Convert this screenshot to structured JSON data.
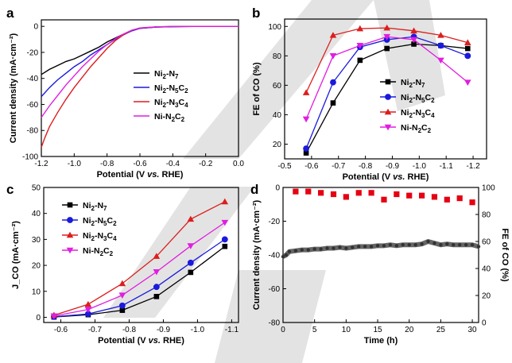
{
  "colors": {
    "ni2n7": "#000000",
    "ni2n5c2": "#1a1adc",
    "ni2n3c4": "#dc1e1e",
    "nin2c2": "#e01ee0",
    "fe_red": "#e60012",
    "current_gray": "#555555"
  },
  "chart_data": [
    {
      "panel": "a",
      "type": "line",
      "xlabel": "Potential (V vs. RHE)",
      "ylabel": "Current density (mA·cm⁻²)",
      "xlim": [
        -1.2,
        0.0
      ],
      "ylim": [
        -100,
        5
      ],
      "xticks": [
        "-1.2",
        "-1.0",
        "-0.8",
        "-0.6",
        "-0.4",
        "-0.2",
        "0.0"
      ],
      "yticks": [
        "-100",
        "-80",
        "-60",
        "-40",
        "-20",
        "0"
      ],
      "legend": [
        "Ni₂-N₇",
        "Ni₂-N₅C₂",
        "Ni₂-N₃C₄",
        "Ni-N₂C₂"
      ],
      "series": [
        {
          "name": "Ni₂-N₇",
          "color": "#000000",
          "x": [
            -1.2,
            -1.15,
            -1.1,
            -1.05,
            -1.0,
            -0.95,
            -0.9,
            -0.85,
            -0.8,
            -0.75,
            -0.7,
            -0.65,
            -0.6,
            -0.5,
            -0.4,
            -0.2,
            0.0
          ],
          "y": [
            -37,
            -33,
            -30,
            -27,
            -25,
            -22,
            -19,
            -16,
            -12,
            -9,
            -6,
            -3,
            -1.5,
            -0.5,
            -0.2,
            0,
            0
          ]
        },
        {
          "name": "Ni₂-N₅C₂",
          "color": "#1a1adc",
          "x": [
            -1.2,
            -1.15,
            -1.1,
            -1.05,
            -1.0,
            -0.95,
            -0.9,
            -0.85,
            -0.8,
            -0.75,
            -0.7,
            -0.65,
            -0.6,
            -0.5,
            -0.4,
            -0.2,
            0.0
          ],
          "y": [
            -54,
            -47,
            -41,
            -36,
            -31,
            -27,
            -22,
            -18,
            -14,
            -10,
            -6.5,
            -3.5,
            -1.5,
            -0.5,
            -0.2,
            0,
            0
          ]
        },
        {
          "name": "Ni₂-N₃C₄",
          "color": "#dc1e1e",
          "x": [
            -1.2,
            -1.18,
            -1.15,
            -1.1,
            -1.05,
            -1.0,
            -0.95,
            -0.9,
            -0.85,
            -0.8,
            -0.75,
            -0.7,
            -0.65,
            -0.6,
            -0.5,
            -0.4,
            -0.2,
            0.0
          ],
          "y": [
            -93,
            -86,
            -77,
            -66,
            -56,
            -47,
            -39,
            -31,
            -24,
            -17,
            -11,
            -6.5,
            -3,
            -1.2,
            -0.4,
            -0.1,
            0,
            0
          ]
        },
        {
          "name": "Ni-N₂C₂",
          "color": "#e01ee0",
          "x": [
            -1.2,
            -1.15,
            -1.1,
            -1.05,
            -1.0,
            -0.95,
            -0.9,
            -0.85,
            -0.8,
            -0.75,
            -0.7,
            -0.65,
            -0.6,
            -0.5,
            -0.4,
            -0.2,
            0.0
          ],
          "y": [
            -70,
            -61,
            -53,
            -45,
            -38,
            -31,
            -25,
            -19,
            -14,
            -9.5,
            -6,
            -3,
            -1.3,
            -0.4,
            -0.1,
            0,
            0
          ]
        }
      ]
    },
    {
      "panel": "b",
      "type": "line",
      "xlabel": "Potential (V vs. RHE)",
      "ylabel": "FE of CO (%)",
      "xlim": [
        -0.5,
        -1.25
      ],
      "ylim": [
        10,
        105
      ],
      "xticks": [
        "-0.5",
        "-0.6",
        "-0.7",
        "-0.8",
        "-0.9",
        "-1.0",
        "-1.1",
        "-1.2"
      ],
      "yticks": [
        "20",
        "40",
        "60",
        "80",
        "100"
      ],
      "legend": [
        "Ni₂-N₇",
        "Ni₂-N₅C₂",
        "Ni₂-N₃C₄",
        "Ni-N₂C₂"
      ],
      "series": [
        {
          "name": "Ni₂-N₇",
          "color": "#000000",
          "marker": "square",
          "x": [
            -0.58,
            -0.68,
            -0.78,
            -0.88,
            -0.98,
            -1.08,
            -1.18
          ],
          "y": [
            14,
            48,
            77,
            85,
            88,
            87,
            85
          ]
        },
        {
          "name": "Ni₂-N₅C₂",
          "color": "#1a1adc",
          "marker": "circle",
          "x": [
            -0.58,
            -0.68,
            -0.78,
            -0.88,
            -0.98,
            -1.08,
            -1.18
          ],
          "y": [
            17,
            62,
            86,
            91,
            93,
            87,
            80
          ]
        },
        {
          "name": "Ni₂-N₃C₄",
          "color": "#dc1e1e",
          "marker": "triangle-up",
          "x": [
            -0.58,
            -0.68,
            -0.78,
            -0.88,
            -0.98,
            -1.08,
            -1.18
          ],
          "y": [
            55,
            94,
            98.5,
            99,
            97,
            94,
            89
          ]
        },
        {
          "name": "Ni-N₂C₂",
          "color": "#e01ee0",
          "marker": "triangle-down",
          "x": [
            -0.58,
            -0.68,
            -0.78,
            -0.88,
            -0.98,
            -1.08,
            -1.18
          ],
          "y": [
            37,
            80,
            87,
            93,
            91,
            77,
            62
          ]
        }
      ]
    },
    {
      "panel": "c",
      "type": "line",
      "xlabel": "Potential (V vs. RHE)",
      "ylabel": "J_CO (mA·cm⁻²)",
      "xlim": [
        -0.55,
        -1.12
      ],
      "ylim": [
        -2,
        50
      ],
      "xticks": [
        "-0.6",
        "-0.7",
        "-0.8",
        "-0.9",
        "-1.0",
        "-1.1"
      ],
      "yticks": [
        "0",
        "10",
        "20",
        "30",
        "40",
        "50"
      ],
      "legend": [
        "Ni₂-N₇",
        "Ni₂-N₅C₂",
        "Ni₂-N₃C₄",
        "Ni-N₂C₂"
      ],
      "series": [
        {
          "name": "Ni₂-N₇",
          "color": "#000000",
          "marker": "square",
          "x": [
            -0.58,
            -0.68,
            -0.78,
            -0.88,
            -0.98,
            -1.08
          ],
          "y": [
            0.1,
            1.0,
            2.7,
            8.0,
            17.3,
            27.3
          ]
        },
        {
          "name": "Ni₂-N₅C₂",
          "color": "#1a1adc",
          "marker": "circle",
          "x": [
            -0.58,
            -0.68,
            -0.78,
            -0.88,
            -0.98,
            -1.08
          ],
          "y": [
            0.2,
            1.3,
            4.5,
            11.7,
            21.0,
            30.0
          ]
        },
        {
          "name": "Ni₂-N₃C₄",
          "color": "#dc1e1e",
          "marker": "triangle-up",
          "x": [
            -0.58,
            -0.68,
            -0.78,
            -0.88,
            -0.98,
            -1.08
          ],
          "y": [
            0.8,
            5.0,
            13.0,
            23.5,
            37.8,
            44.5
          ]
        },
        {
          "name": "Ni-N₂C₂",
          "color": "#e01ee0",
          "marker": "triangle-down",
          "x": [
            -0.58,
            -0.68,
            -0.78,
            -0.88,
            -0.98,
            -1.08
          ],
          "y": [
            0.5,
            3.0,
            8.5,
            17.5,
            27.5,
            36.5
          ]
        }
      ]
    },
    {
      "panel": "d",
      "type": "scatter",
      "xlabel": "Time (h)",
      "ylabel": "Current density (mA·cm⁻²)",
      "y2label": "FE of CO (%)",
      "xlim": [
        0,
        31
      ],
      "ylim": [
        -80,
        0
      ],
      "y2lim": [
        0,
        100
      ],
      "xticks": [
        "0",
        "5",
        "10",
        "15",
        "20",
        "25",
        "30"
      ],
      "yticks": [
        "0",
        "-20",
        "-40",
        "-60",
        "-80"
      ],
      "y2ticks": [
        "0",
        "20",
        "40",
        "60",
        "80",
        "100"
      ],
      "current_series": {
        "name": "Current density",
        "color": "#555555",
        "x": [
          0,
          0.5,
          1,
          2,
          3,
          4,
          5,
          6,
          7,
          8,
          9,
          10,
          11,
          12,
          13,
          14,
          15,
          16,
          17,
          18,
          19,
          20,
          21,
          22,
          23,
          24,
          25,
          26,
          27,
          28,
          29,
          30,
          31
        ],
        "y": [
          -41,
          -40,
          -38,
          -37.5,
          -37,
          -37,
          -36.5,
          -36.5,
          -36,
          -36,
          -35.5,
          -36,
          -35.5,
          -35,
          -35,
          -35,
          -34.5,
          -34.5,
          -34,
          -34.5,
          -34,
          -34,
          -34,
          -33.5,
          -32,
          -33,
          -34,
          -33.5,
          -34,
          -34,
          -34,
          -34,
          -35
        ]
      },
      "fe_series": {
        "name": "FE of CO",
        "color": "#e60012",
        "marker": "square",
        "x": [
          2,
          4,
          6,
          8,
          10,
          12,
          14,
          16,
          18,
          20,
          22,
          24,
          26,
          28,
          30
        ],
        "y": [
          97,
          97,
          96,
          95,
          93,
          96,
          96,
          91,
          95,
          94,
          94,
          93,
          91,
          92,
          89
        ]
      }
    }
  ]
}
